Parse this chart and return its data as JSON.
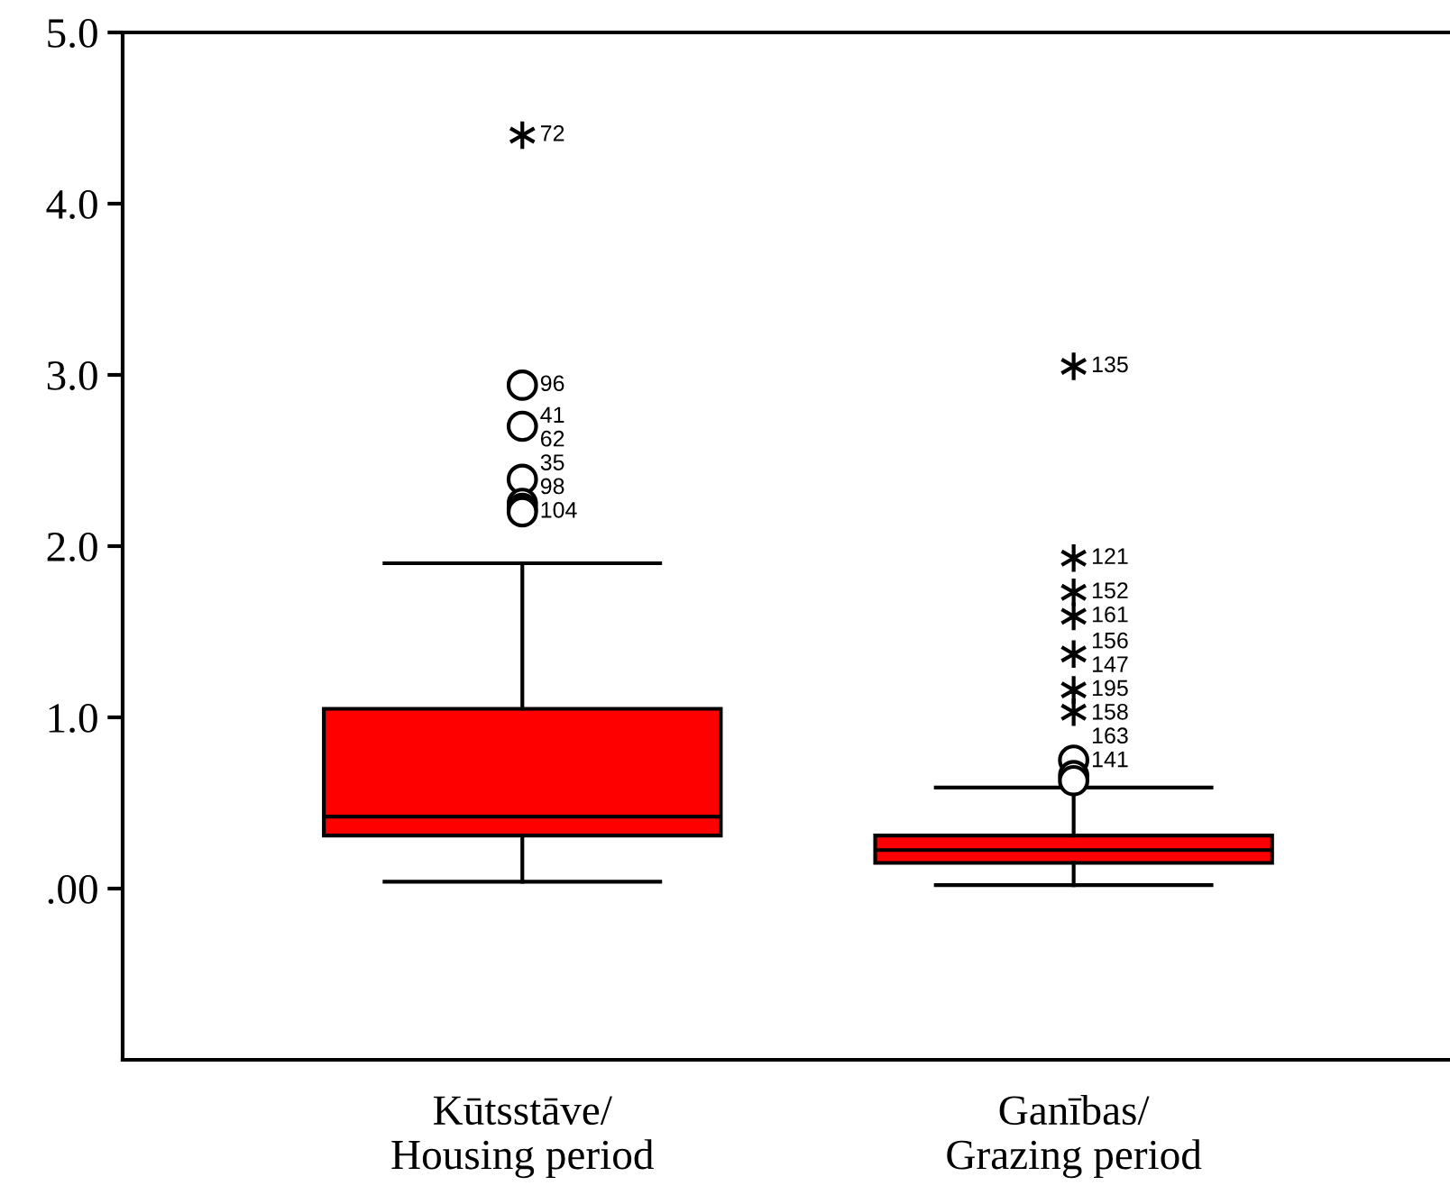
{
  "chart_data": {
    "type": "box",
    "categories": [
      "Kūtsstāve/\nHousing period",
      "Ganības/\nGrazing period"
    ],
    "color": "#ff0000",
    "boxes": [
      {
        "low": 0.04,
        "q1": 0.31,
        "median": 0.42,
        "q3": 1.05,
        "high": 1.9,
        "outliers": [
          4.4,
          2.94,
          2.7,
          2.39,
          2.25,
          2.22,
          2.2
        ]
      },
      {
        "low": 0.02,
        "q1": 0.15,
        "median": 0.225,
        "q3": 0.31,
        "high": 0.59,
        "outliers": [
          3.05,
          1.93,
          1.73,
          1.59,
          1.37,
          1.16,
          1.03,
          0.75,
          0.66,
          0.63
        ]
      }
    ],
    "ylim": [
      -1.0,
      5.0
    ],
    "yticks": [
      {
        "value": 0,
        "label": ".00"
      },
      {
        "value": 1,
        "label": "1.0"
      },
      {
        "value": 2,
        "label": "2.0"
      },
      {
        "value": 3,
        "label": "3.0"
      },
      {
        "value": 4,
        "label": "4.0"
      },
      {
        "value": 5,
        "label": "5.0"
      }
    ],
    "grid": false,
    "annotations": [
      "72",
      "96",
      "41",
      "62",
      "35",
      "98",
      "104",
      "135",
      "121",
      "152",
      "161",
      "156",
      "147",
      "195",
      "158",
      "163",
      "141"
    ]
  }
}
